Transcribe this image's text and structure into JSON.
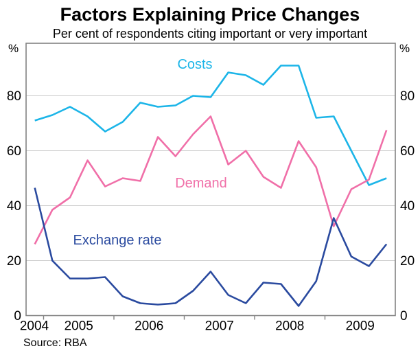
{
  "header": {
    "title": "Factors Explaining Price Changes",
    "subtitle": "Per cent of respondents citing important or very important"
  },
  "axis": {
    "y_unit_left": "%",
    "y_unit_right": "%",
    "y_ticks": [
      0,
      20,
      40,
      60,
      80
    ],
    "x_year_labels": [
      "2004",
      "2005",
      "2006",
      "2007",
      "2008",
      "2009"
    ]
  },
  "footer": {
    "source": "Source: RBA"
  },
  "chart_data": {
    "type": "line",
    "title": "Factors Explaining Price Changes",
    "subtitle": "Per cent of respondents citing important or very important",
    "xlabel": "",
    "ylabel": "Per cent of respondents",
    "ylim": [
      0,
      99
    ],
    "grid": "horizontal",
    "legend_position": "inline-labels",
    "x_quarters": [
      "2004 Q4",
      "2005 Q1",
      "2005 Q2",
      "2005 Q3",
      "2005 Q4",
      "2006 Q1",
      "2006 Q2",
      "2006 Q3",
      "2006 Q4",
      "2007 Q1",
      "2007 Q2",
      "2007 Q3",
      "2007 Q4",
      "2008 Q1",
      "2008 Q2",
      "2008 Q3",
      "2008 Q4",
      "2009 Q1",
      "2009 Q2",
      "2009 Q3",
      "2009 Q4"
    ],
    "series": [
      {
        "name": "Costs",
        "color": "#1cb5e8",
        "values": [
          71,
          73,
          76,
          72.5,
          67,
          70.5,
          77.5,
          76,
          76.5,
          80,
          79.5,
          88.5,
          87.5,
          84,
          91,
          91,
          72,
          72.5,
          60,
          47.5,
          50
        ]
      },
      {
        "name": "Demand",
        "color": "#f06fa8",
        "values": [
          26,
          38.5,
          43,
          56.5,
          47,
          50,
          49,
          65,
          58,
          66,
          72.5,
          55,
          60,
          50.5,
          46.5,
          63.5,
          54,
          32.5,
          46,
          49.5,
          67.5
        ]
      },
      {
        "name": "Exchange rate",
        "color": "#2a4a9f",
        "values": [
          46.5,
          20,
          13.5,
          13.5,
          14,
          7,
          4.5,
          4,
          4.5,
          9,
          16,
          7.5,
          4.5,
          12,
          11.5,
          3.5,
          12.5,
          35.5,
          21.5,
          18,
          26
        ]
      }
    ]
  }
}
